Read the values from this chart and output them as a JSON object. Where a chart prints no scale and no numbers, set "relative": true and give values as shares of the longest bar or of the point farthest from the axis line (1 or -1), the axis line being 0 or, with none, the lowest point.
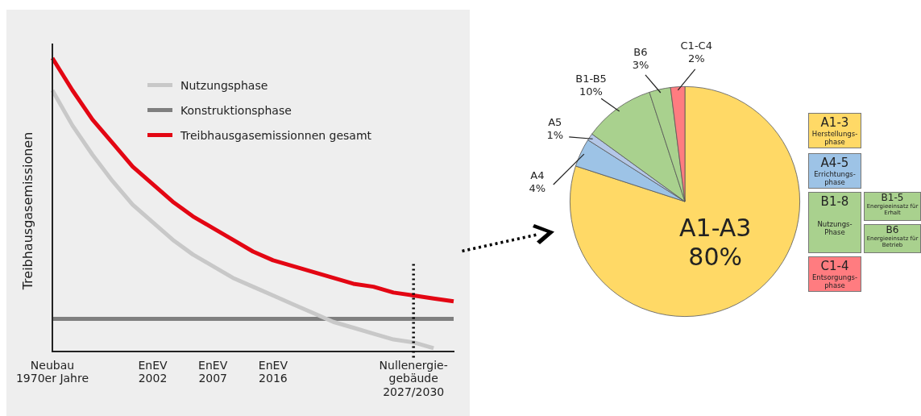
{
  "chart_data": [
    {
      "type": "line",
      "relative": true,
      "ylabel": "Treibhausgasemissionen",
      "legend": "top",
      "marker": "none",
      "line_style": "solid",
      "grid": false,
      "ref_lines": [
        {
          "axis": "x",
          "value": "Nullenergie-\ngebäude\n2027/2030",
          "color": "#000000",
          "line_style": "dotted"
        }
      ],
      "categories": [
        "Neubau\n1970er Jahre",
        null,
        null,
        null,
        null,
        "EnEV\n2002",
        null,
        null,
        "EnEV\n2007",
        null,
        null,
        "EnEV\n2016",
        null,
        null,
        null,
        null,
        null,
        null,
        "Nullenergie-\ngebäude\n2027/2030",
        null,
        null
      ],
      "series": [
        {
          "name": "Nutzungsphase",
          "color": "#c8c8c8",
          "values": [
            0.89,
            0.77,
            0.67,
            0.58,
            0.5,
            0.44,
            0.38,
            0.33,
            0.29,
            0.25,
            0.22,
            0.19,
            0.16,
            0.13,
            0.1,
            0.08,
            0.06,
            0.04,
            0.03,
            0.01,
            null
          ]
        },
        {
          "name": "Konstruktionsphase",
          "color": "#7f7f7f",
          "values": [
            0.11,
            0.11,
            0.11,
            0.11,
            0.11,
            0.11,
            0.11,
            0.11,
            0.11,
            0.11,
            0.11,
            0.11,
            0.11,
            0.11,
            0.11,
            0.11,
            0.11,
            0.11,
            0.11,
            0.11,
            0.11
          ]
        },
        {
          "name": "Treibhausgasemissionnen gesamt",
          "color": "#e30613",
          "values": [
            1,
            0.89,
            0.79,
            0.71,
            0.63,
            0.57,
            0.51,
            0.46,
            0.42,
            0.38,
            0.34,
            0.31,
            0.29,
            0.27,
            0.25,
            0.23,
            0.22,
            0.2,
            0.19,
            0.18,
            0.17
          ]
        }
      ]
    },
    {
      "type": "pie",
      "categories": [
        "A1-A3",
        "A4",
        "A5",
        "B1-B5",
        "B6",
        "C1-C4"
      ],
      "values": [
        80,
        4,
        1,
        10,
        3,
        2
      ],
      "colors": [
        "#ffd966",
        "#9dc3e6",
        "#b4c7e7",
        "#a9d18e",
        "#a9d18e",
        "#ff7c80"
      ],
      "value_labels": [
        "80%",
        "4%",
        "1%",
        "10%",
        "3%",
        "2%"
      ],
      "annotations": [
        "A1-3\nHerstellungs-\nphase",
        "A4-5\nErrichtungs-\nphase",
        "B1-8\nNutzungs-\nPhase",
        "B1-5\nEnergieeinsatz für\nErhalt",
        "B6\nEnergieeinsatz für\nBetrieb",
        "C1-4\nEntsorgungs-\nphase"
      ]
    }
  ]
}
